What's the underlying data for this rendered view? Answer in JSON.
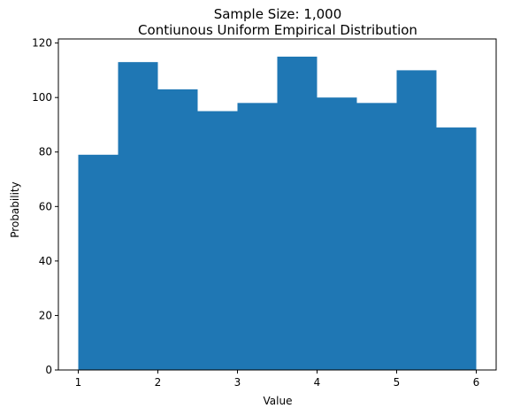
{
  "chart_data": {
    "type": "bar",
    "title": "Sample Size: 1,000",
    "subtitle": "Contiunous Uniform Empirical Distribution",
    "xlabel": "Value",
    "ylabel": "Probability",
    "xlim": [
      0.75,
      6.25
    ],
    "ylim": [
      0,
      121.5
    ],
    "bin_edges": [
      1.0,
      1.5,
      2.0,
      2.5,
      3.0,
      3.5,
      4.0,
      4.5,
      5.0,
      5.5,
      6.0
    ],
    "values": [
      79,
      113,
      103,
      95,
      98,
      115,
      100,
      98,
      110,
      89
    ],
    "xticks": [
      1,
      2,
      3,
      4,
      5,
      6
    ],
    "xtick_labels": [
      "1",
      "2",
      "3",
      "4",
      "5",
      "6"
    ],
    "yticks": [
      0,
      20,
      40,
      60,
      80,
      100,
      120
    ],
    "ytick_labels": [
      "0",
      "20",
      "40",
      "60",
      "80",
      "100",
      "120"
    ],
    "bar_color": "#1f77b4",
    "grid": false,
    "legend": "none"
  }
}
